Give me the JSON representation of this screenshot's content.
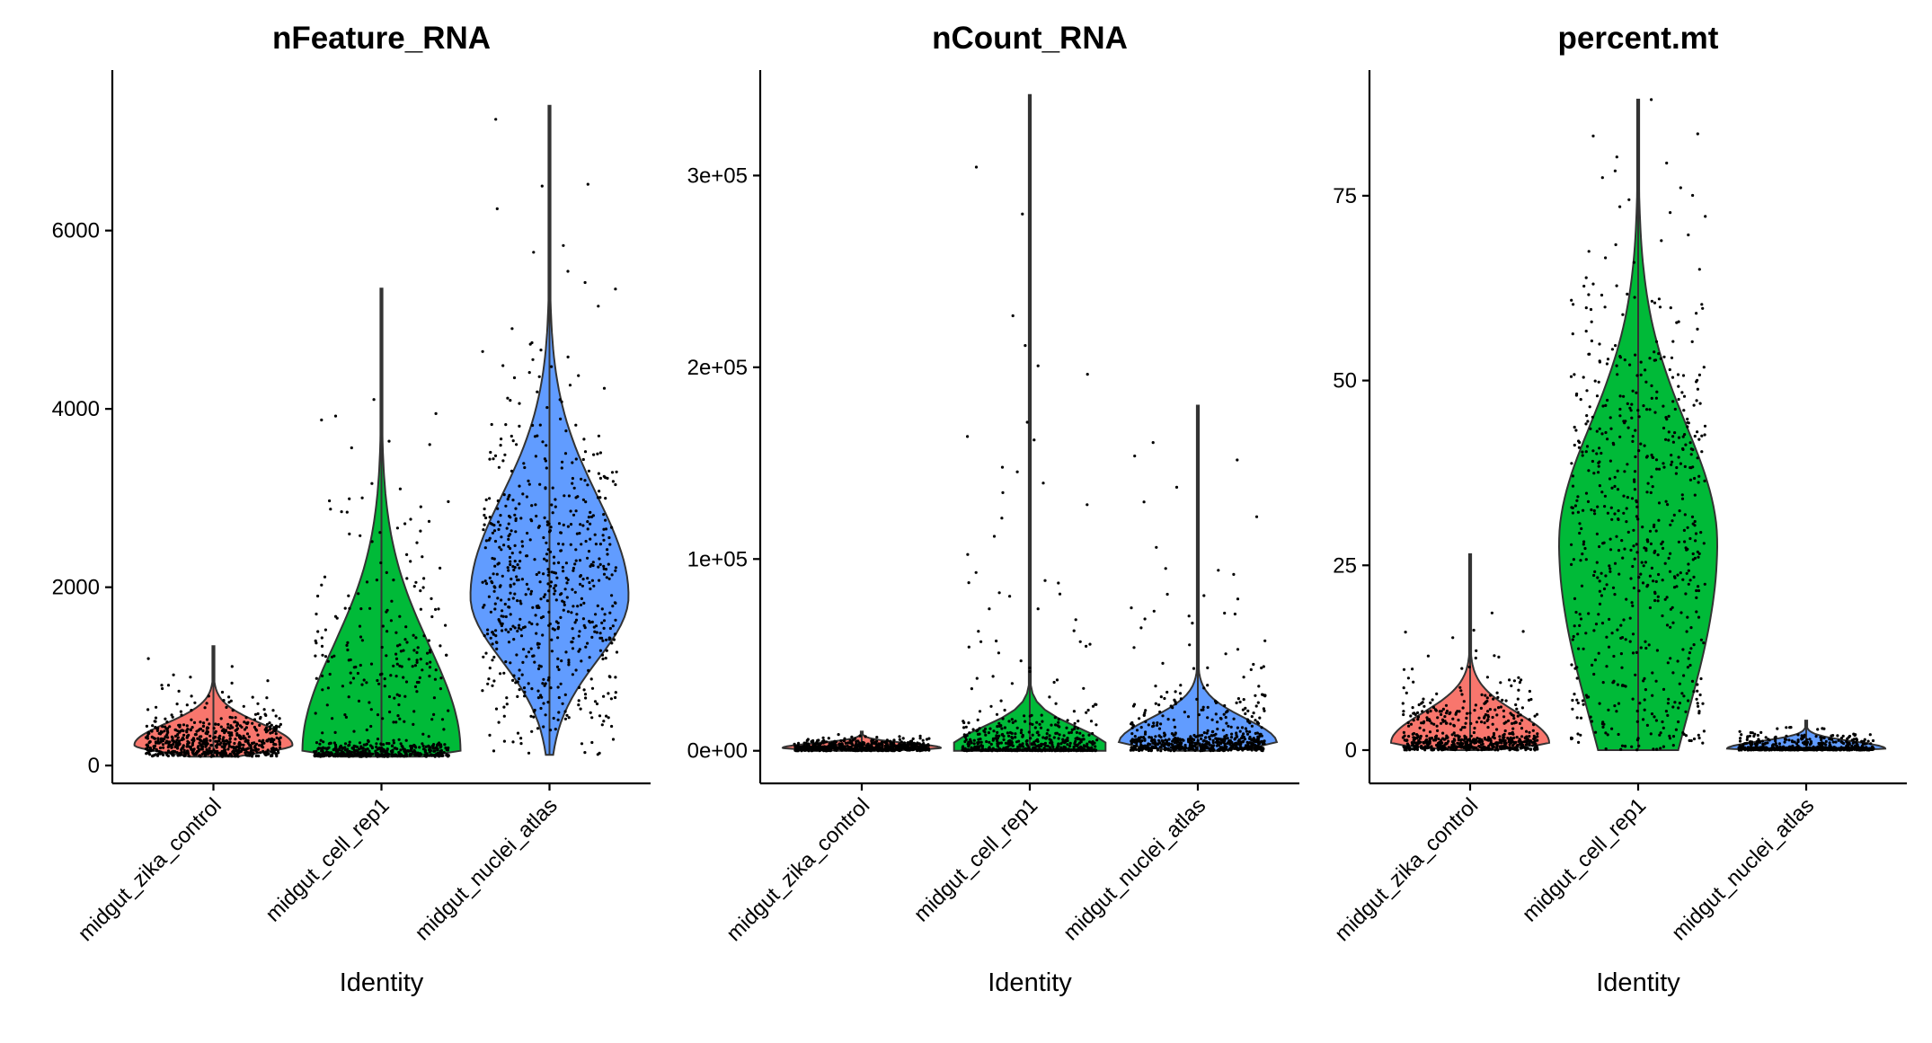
{
  "figure": {
    "x_axis_title": "Identity"
  },
  "colors": {
    "midgut_zika_control": "#F8766D",
    "midgut_cell_rep1": "#00BA38",
    "midgut_nuclei_atlas": "#619CFF"
  },
  "chart_data": [
    {
      "type": "violin",
      "title": "nFeature_RNA",
      "xlabel": "Identity",
      "ylabel": "",
      "categories": [
        "midgut_zika_control",
        "midgut_cell_rep1",
        "midgut_nuclei_atlas"
      ],
      "ylim": [
        -200,
        7800
      ],
      "yticks": [
        0,
        2000,
        4000,
        6000
      ],
      "ytick_labels": [
        "0",
        "2000",
        "4000",
        "6000"
      ],
      "series": [
        {
          "category": "midgut_zika_control",
          "min": 100,
          "max": 1340,
          "median": 220,
          "q1": 160,
          "q3": 380,
          "peak": 230
        },
        {
          "category": "midgut_cell_rep1",
          "min": 100,
          "max": 5350,
          "median": 180,
          "q1": 130,
          "q3": 900,
          "peak": 160
        },
        {
          "category": "midgut_nuclei_atlas",
          "min": 120,
          "max": 7400,
          "median": 1900,
          "q1": 1300,
          "q3": 2600,
          "peak": 1900
        }
      ]
    },
    {
      "type": "violin",
      "title": "nCount_RNA",
      "xlabel": "Identity",
      "ylabel": "",
      "categories": [
        "midgut_zika_control",
        "midgut_cell_rep1",
        "midgut_nuclei_atlas"
      ],
      "ylim": [
        -17000,
        355000
      ],
      "yticks": [
        0,
        100000,
        200000,
        300000
      ],
      "ytick_labels": [
        "0e+00",
        "1e+05",
        "2e+05",
        "3e+05"
      ],
      "series": [
        {
          "category": "midgut_zika_control",
          "min": 0,
          "max": 10000,
          "median": 1500,
          "q1": 700,
          "q3": 3000,
          "peak": 1500
        },
        {
          "category": "midgut_cell_rep1",
          "min": 0,
          "max": 342000,
          "median": 1500,
          "q1": 600,
          "q3": 8000,
          "peak": 1000
        },
        {
          "category": "midgut_nuclei_atlas",
          "min": 0,
          "max": 180000,
          "median": 4000,
          "q1": 2000,
          "q3": 12000,
          "peak": 4000
        }
      ]
    },
    {
      "type": "violin",
      "title": "percent.mt",
      "xlabel": "Identity",
      "ylabel": "",
      "categories": [
        "midgut_zika_control",
        "midgut_cell_rep1",
        "midgut_nuclei_atlas"
      ],
      "ylim": [
        -4.5,
        92
      ],
      "yticks": [
        0,
        25,
        50,
        75
      ],
      "ytick_labels": [
        "0",
        "25",
        "50",
        "75"
      ],
      "series": [
        {
          "category": "midgut_zika_control",
          "min": 0,
          "max": 26.5,
          "median": 1.5,
          "q1": 0.5,
          "q3": 3.5,
          "peak": 1.0
        },
        {
          "category": "midgut_cell_rep1",
          "min": 0,
          "max": 88,
          "median": 22,
          "q1": 8,
          "q3": 38,
          "peak": 28
        },
        {
          "category": "midgut_nuclei_atlas",
          "min": 0,
          "max": 4,
          "median": 0.3,
          "q1": 0.1,
          "q3": 0.8,
          "peak": 0.2
        }
      ]
    }
  ]
}
